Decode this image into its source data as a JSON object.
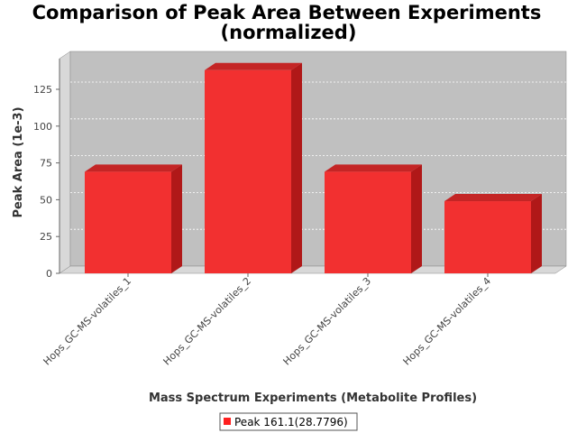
{
  "chart_data": {
    "type": "bar",
    "title": "Comparison of Peak Area Between Experiments",
    "subtitle": "(normalized)",
    "xlabel": "Mass Spectrum Experiments (Metabolite Profiles)",
    "ylabel": "Peak Area (1e-3)",
    "categories": [
      "Hops_GC-MS-volatiles_1",
      "Hops_GC-MS-volatiles_2",
      "Hops_GC-MS-volatiles_3",
      "Hops_GC-MS-volatiles_4"
    ],
    "series": [
      {
        "name": "Peak 161.1(28.7796)",
        "values": [
          69,
          138,
          69,
          49
        ],
        "color": "#ff2020"
      }
    ],
    "yticks": [
      0,
      25,
      50,
      75,
      100,
      125
    ],
    "ylim": [
      0,
      150
    ],
    "grid": true,
    "legend_position": "bottom",
    "plot_background": "#c0c0c0"
  }
}
